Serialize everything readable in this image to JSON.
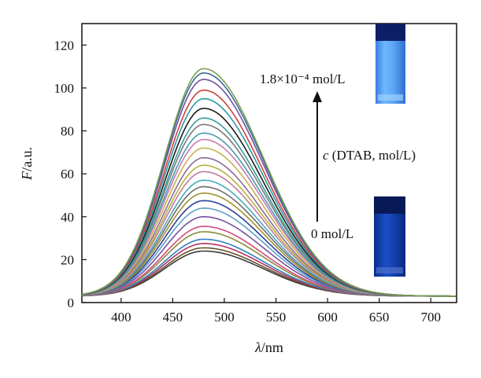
{
  "chart_data": {
    "type": "line",
    "xlabel_symbol": "λ",
    "xlabel_unit": "/nm",
    "ylabel_symbol": "F",
    "ylabel_unit": "/a.u.",
    "xlim": [
      362,
      725
    ],
    "ylim": [
      0,
      130
    ],
    "xticks": [
      400,
      450,
      500,
      550,
      600,
      650,
      700
    ],
    "yticks": [
      0,
      20,
      40,
      60,
      80,
      100,
      120
    ],
    "grid": false,
    "peak_wavelength": 480,
    "series_peaks": [
      24,
      25.5,
      27.5,
      29.5,
      33,
      35.5,
      40,
      44,
      47.5,
      51,
      54,
      57,
      61,
      64,
      67.5,
      72,
      76,
      79,
      83,
      86,
      90.5,
      95,
      99,
      104,
      107,
      109
    ],
    "colors": [
      "#3a3a3a",
      "#6b4f2b",
      "#b03060",
      "#2f7fbf",
      "#8a8a3a",
      "#d04a7a",
      "#7a50a0",
      "#5aa0c8",
      "#2b3f9a",
      "#a09030",
      "#6e6e6e",
      "#48a8b8",
      "#c07a9a",
      "#b8b040",
      "#8a6a9a",
      "#c8b050",
      "#c87ab0",
      "#4a9ab0",
      "#7a7a7a",
      "#3a9a9a",
      "#1a1a1a",
      "#2a9aa0",
      "#d04040",
      "#7050a0",
      "#3a6a9a",
      "#7aa050"
    ],
    "annotations": {
      "top_conc": "1.8×10⁻⁴ mol/L",
      "bottom_conc": "0 mol/L",
      "arrow_label_var": "c",
      "arrow_label_rest": " (DTAB, mol/L)"
    }
  }
}
